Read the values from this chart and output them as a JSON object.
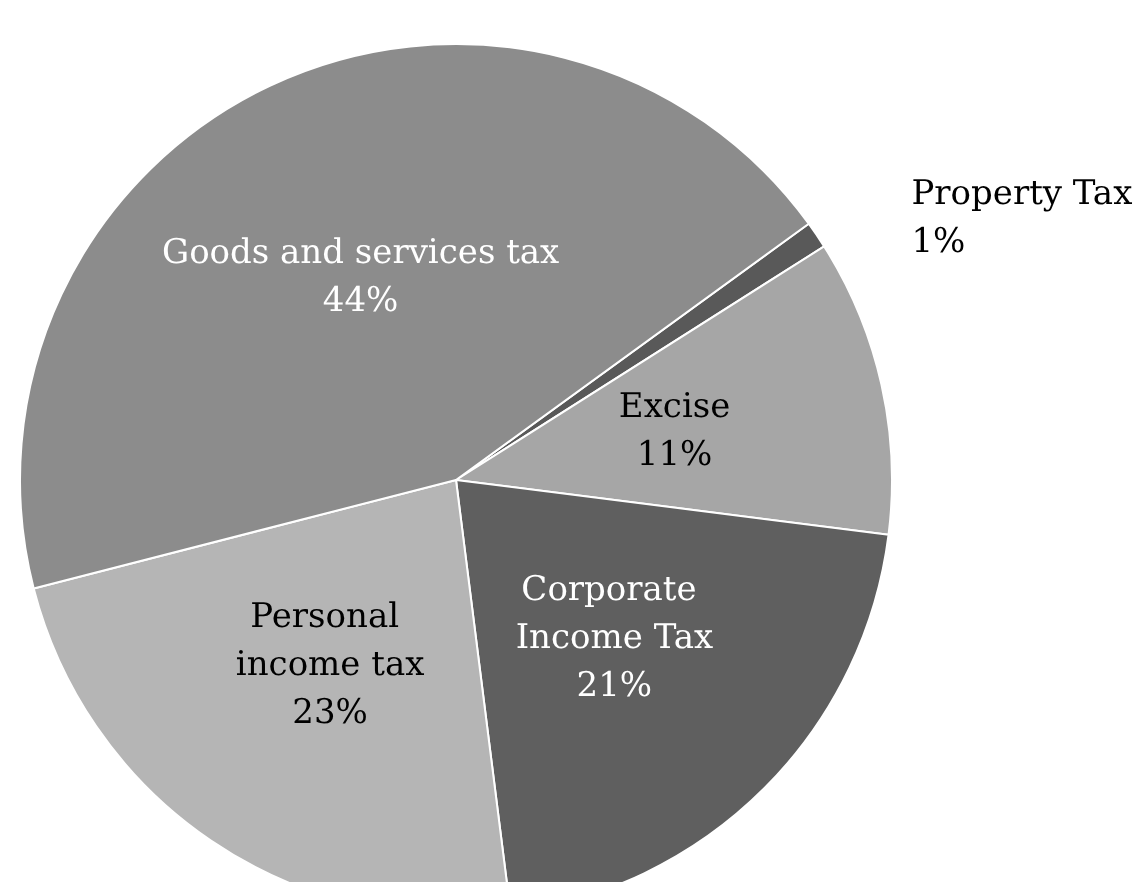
{
  "chart_data": {
    "type": "pie",
    "categories": [
      "Property Tax",
      "Excise",
      "Corporate Income Tax",
      "Personal income tax",
      "Goods and services tax"
    ],
    "values": [
      1,
      11,
      21,
      23,
      44
    ],
    "colors": [
      "#595959",
      "#a6a6a6",
      "#5f5f5f",
      "#b5b5b5",
      "#8c8c8c"
    ],
    "value_labels": [
      "1%",
      "11%",
      "21%",
      "23%",
      "44%"
    ],
    "legend": false
  }
}
